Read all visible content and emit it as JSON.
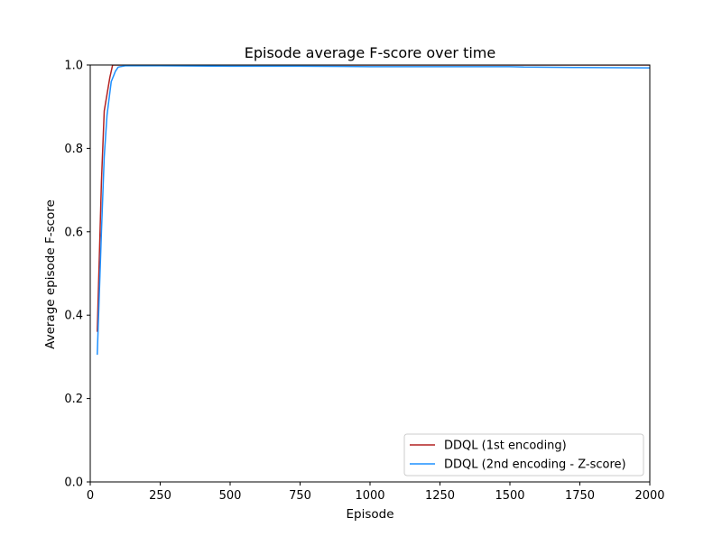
{
  "chart_data": {
    "type": "line",
    "title": "Episode average F-score over time",
    "xlabel": "Episode",
    "ylabel": "Average episode F-score",
    "xlim": [
      0,
      2000
    ],
    "ylim": [
      0.0,
      1.0
    ],
    "xticks": [
      0,
      250,
      500,
      750,
      1000,
      1250,
      1500,
      1750,
      2000
    ],
    "xtick_labels": [
      "0",
      "250",
      "500",
      "750",
      "1000",
      "1250",
      "1500",
      "1750",
      "2000"
    ],
    "yticks": [
      0.0,
      0.2,
      0.4,
      0.6,
      0.8,
      1.0
    ],
    "ytick_labels": [
      "0.0",
      "0.2",
      "0.4",
      "0.6",
      "0.8",
      "1.0"
    ],
    "grid": false,
    "legend_position": "lower-right",
    "series": [
      {
        "name": "DDQL (1st encoding)",
        "color": "#b22222",
        "x": [
          25,
          40,
          50,
          60,
          70,
          80,
          100,
          200,
          500,
          1000,
          1500,
          2000
        ],
        "y": [
          0.36,
          0.72,
          0.89,
          0.93,
          0.97,
          1.0,
          1.0,
          1.0,
          1.0,
          1.0,
          1.0,
          1.0
        ]
      },
      {
        "name": "DDQL (2nd encoding - Z-score)",
        "color": "#1e90ff",
        "x": [
          25,
          40,
          50,
          60,
          75,
          90,
          100,
          125,
          150,
          250,
          500,
          750,
          1000,
          1250,
          1500,
          1550,
          1750,
          2000
        ],
        "y": [
          0.305,
          0.6,
          0.78,
          0.88,
          0.96,
          0.985,
          0.995,
          0.998,
          0.998,
          0.998,
          0.997,
          0.997,
          0.996,
          0.996,
          0.996,
          0.995,
          0.994,
          0.993
        ]
      }
    ]
  }
}
